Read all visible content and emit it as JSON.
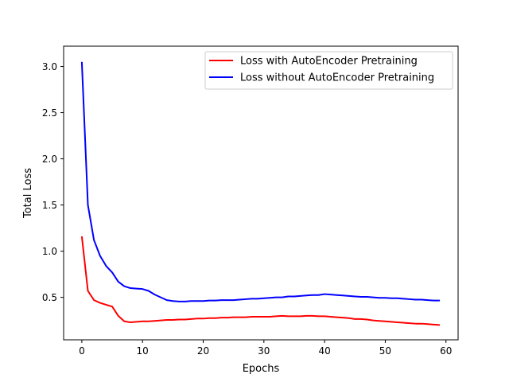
{
  "chart_data": {
    "type": "line",
    "xlabel": "Epochs",
    "ylabel": "Total Loss",
    "xlim": [
      -3,
      62
    ],
    "ylim": [
      0.04,
      3.22
    ],
    "xticks": [
      0,
      10,
      20,
      30,
      40,
      50,
      60
    ],
    "yticks": [
      0.5,
      1.0,
      1.5,
      2.0,
      2.5,
      3.0
    ],
    "xtick_labels": [
      "0",
      "10",
      "20",
      "30",
      "40",
      "50",
      "60"
    ],
    "ytick_labels": [
      "0.5",
      "1.0",
      "1.5",
      "2.0",
      "2.5",
      "3.0"
    ],
    "grid": false,
    "legend_position": "top-right",
    "x": [
      0,
      1,
      2,
      3,
      4,
      5,
      6,
      7,
      8,
      9,
      10,
      11,
      12,
      13,
      14,
      15,
      16,
      17,
      18,
      19,
      20,
      21,
      22,
      23,
      24,
      25,
      26,
      27,
      28,
      29,
      30,
      31,
      32,
      33,
      34,
      35,
      36,
      37,
      38,
      39,
      40,
      41,
      42,
      43,
      44,
      45,
      46,
      47,
      48,
      49,
      50,
      51,
      52,
      53,
      54,
      55,
      56,
      57,
      58,
      59
    ],
    "series": [
      {
        "name": "Loss with AutoEncoder Pretraining",
        "color": "#ff0000",
        "values": [
          1.16,
          0.57,
          0.47,
          0.44,
          0.42,
          0.4,
          0.3,
          0.24,
          0.23,
          0.235,
          0.24,
          0.24,
          0.245,
          0.25,
          0.255,
          0.255,
          0.26,
          0.26,
          0.265,
          0.27,
          0.27,
          0.275,
          0.275,
          0.28,
          0.28,
          0.285,
          0.285,
          0.285,
          0.29,
          0.29,
          0.29,
          0.29,
          0.295,
          0.3,
          0.295,
          0.295,
          0.295,
          0.3,
          0.3,
          0.295,
          0.295,
          0.29,
          0.285,
          0.28,
          0.275,
          0.265,
          0.265,
          0.26,
          0.25,
          0.245,
          0.24,
          0.235,
          0.23,
          0.225,
          0.22,
          0.215,
          0.215,
          0.21,
          0.205,
          0.2
        ]
      },
      {
        "name": "Loss without AutoEncoder Pretraining",
        "color": "#0000ff",
        "values": [
          3.05,
          1.5,
          1.12,
          0.95,
          0.84,
          0.77,
          0.67,
          0.62,
          0.6,
          0.595,
          0.59,
          0.57,
          0.53,
          0.5,
          0.47,
          0.46,
          0.455,
          0.455,
          0.46,
          0.46,
          0.46,
          0.465,
          0.465,
          0.47,
          0.47,
          0.47,
          0.475,
          0.48,
          0.485,
          0.485,
          0.49,
          0.495,
          0.5,
          0.5,
          0.51,
          0.51,
          0.515,
          0.52,
          0.525,
          0.525,
          0.535,
          0.53,
          0.525,
          0.52,
          0.515,
          0.51,
          0.505,
          0.505,
          0.5,
          0.495,
          0.495,
          0.49,
          0.49,
          0.485,
          0.48,
          0.475,
          0.475,
          0.47,
          0.465,
          0.465
        ]
      }
    ]
  }
}
